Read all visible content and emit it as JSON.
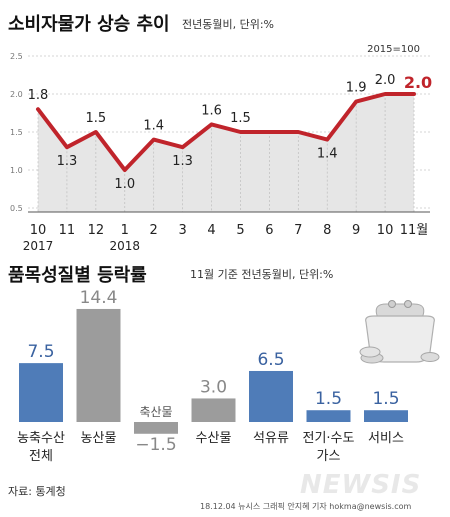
{
  "header": {
    "title1": "소비자물가 상승 추이",
    "subtitle1": "전년동월비, 단위:%",
    "title2": "품목성질별 등락률",
    "subtitle2": "11월 기준 전년동월비, 단위:%"
  },
  "footer": {
    "source": "자료: 통계청",
    "credit": "18.12.04 뉴시스 그래픽 안지혜 기자 hokma@newsis.com",
    "wordmark": "NEWSIS"
  },
  "colors": {
    "line": "#c0242b",
    "area": "#e6e6e6",
    "bar_blue": "#4f7cb8",
    "bar_gray": "#9c9c9c",
    "label_blue": "#3a62a0",
    "label_gray": "#888888"
  },
  "chart_data": [
    {
      "type": "line",
      "base_note": "2015=100",
      "x": [
        "10",
        "11",
        "12",
        "1",
        "2",
        "3",
        "4",
        "5",
        "6",
        "7",
        "8",
        "9",
        "10",
        "11월"
      ],
      "year_labels": [
        {
          "text": "2017",
          "index": 0
        },
        {
          "text": "2018",
          "index": 3
        }
      ],
      "values": [
        1.8,
        1.3,
        1.5,
        1.0,
        1.4,
        1.3,
        1.6,
        1.5,
        1.5,
        1.5,
        1.4,
        1.9,
        2.0,
        2.0
      ],
      "value_labels": [
        "1.8",
        "1.3",
        "1.5",
        "1.0",
        "1.4",
        "1.3",
        "1.6",
        "1.5",
        "",
        "",
        "1.4",
        "1.9",
        "2.0",
        "2.0"
      ],
      "yticks": [
        "0.5",
        "1.0",
        "1.5",
        "2.0",
        "2.5"
      ],
      "ylim": [
        0.5,
        2.5
      ],
      "grid": true
    },
    {
      "type": "bar",
      "categories": [
        {
          "lines": [
            "농축수산",
            "전체"
          ],
          "value": 7.5,
          "label": "7.5",
          "color": "blue"
        },
        {
          "lines": [
            "농산물"
          ],
          "value": 14.4,
          "label": "14.4",
          "color": "gray"
        },
        {
          "lines": [
            "축산물"
          ],
          "value": -1.5,
          "label": "−1.5",
          "color": "gray"
        },
        {
          "lines": [
            "수산물"
          ],
          "value": 3.0,
          "label": "3.0",
          "color": "gray"
        },
        {
          "lines": [
            "석유류"
          ],
          "value": 6.5,
          "label": "6.5",
          "color": "blue"
        },
        {
          "lines": [
            "전기·수도",
            "가스"
          ],
          "value": 1.5,
          "label": "1.5",
          "color": "blue"
        },
        {
          "lines": [
            "서비스"
          ],
          "value": 1.5,
          "label": "1.5",
          "color": "blue"
        }
      ]
    }
  ]
}
